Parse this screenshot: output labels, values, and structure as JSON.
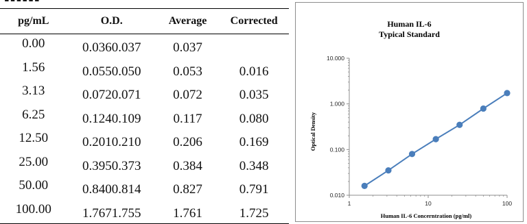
{
  "table": {
    "headers": {
      "concentration": "pg/mL",
      "od": "O.D.",
      "average": "Average",
      "corrected": "Corrected"
    },
    "rows": [
      {
        "conc": "0.00",
        "od1": "0.036",
        "od2": "0.037",
        "avg": "0.037",
        "corr": ""
      },
      {
        "conc": "1.56",
        "od1": "0.055",
        "od2": "0.050",
        "avg": "0.053",
        "corr": "0.016"
      },
      {
        "conc": "3.13",
        "od1": "0.072",
        "od2": "0.071",
        "avg": "0.072",
        "corr": "0.035"
      },
      {
        "conc": "6.25",
        "od1": "0.124",
        "od2": "0.109",
        "avg": "0.117",
        "corr": "0.080"
      },
      {
        "conc": "12.50",
        "od1": "0.201",
        "od2": "0.210",
        "avg": "0.206",
        "corr": "0.169"
      },
      {
        "conc": "25.00",
        "od1": "0.395",
        "od2": "0.373",
        "avg": "0.384",
        "corr": "0.348"
      },
      {
        "conc": "50.00",
        "od1": "0.840",
        "od2": "0.814",
        "avg": "0.827",
        "corr": "0.791"
      },
      {
        "conc": "100.00",
        "od1": "1.767",
        "od2": "1.755",
        "avg": "1.761",
        "corr": "1.725"
      }
    ]
  },
  "chart_data": {
    "type": "line",
    "title": "Human IL-6",
    "subtitle": "Typical Standard",
    "xlabel": "Human IL-6 Concerntration (pg/ml)",
    "ylabel": "Optical Density",
    "x_scale": "log",
    "y_scale": "log",
    "xlim": [
      1,
      100
    ],
    "ylim": [
      0.01,
      10
    ],
    "x_ticks": [
      "1",
      "10",
      "100"
    ],
    "y_ticks": [
      "0.010",
      "0.100",
      "1.000",
      "10.000"
    ],
    "grid": false,
    "series": [
      {
        "x": [
          1.56,
          3.13,
          6.25,
          12.5,
          25,
          50,
          100
        ],
        "y": [
          0.016,
          0.035,
          0.08,
          0.169,
          0.348,
          0.791,
          1.725
        ]
      }
    ],
    "colors": {
      "series": "#4a7ebb"
    }
  }
}
